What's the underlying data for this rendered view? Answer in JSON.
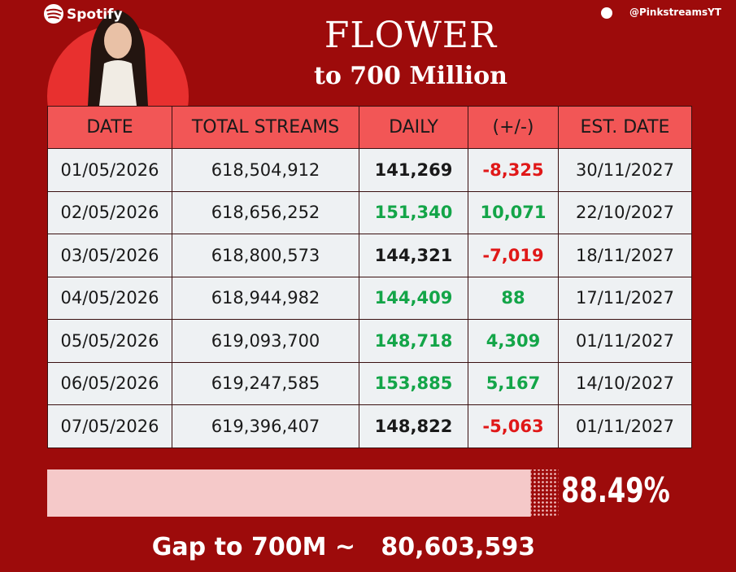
{
  "header": {
    "brand": "Spotify",
    "handle": "@PinkstreamsYT",
    "title": "FLOWER",
    "subtitle": "to 700 Million"
  },
  "table": {
    "columns": [
      "DATE",
      "TOTAL STREAMS",
      "DAILY",
      "(+/-)",
      "EST. DATE"
    ],
    "rows": [
      [
        "01/05/2026",
        "618,504,912",
        "141,269",
        "-8,325",
        "30/11/2027"
      ],
      [
        "02/05/2026",
        "618,656,252",
        "151,340",
        "10,071",
        "22/10/2027"
      ],
      [
        "03/05/2026",
        "618,800,573",
        "144,321",
        "-7,019",
        "18/11/2027"
      ],
      [
        "04/05/2026",
        "618,944,982",
        "144,409",
        "88",
        "17/11/2027"
      ],
      [
        "05/05/2026",
        "619,093,700",
        "148,718",
        "4,309",
        "01/11/2027"
      ],
      [
        "06/05/2026",
        "619,247,585",
        "153,885",
        "5,167",
        "14/10/2027"
      ],
      [
        "07/05/2026",
        "619,396,407",
        "148,822",
        "-5,063",
        "01/11/2027"
      ]
    ],
    "tones": [
      [
        "#1a1a1a",
        "#e01818"
      ],
      [
        "#13a548",
        "#13a548"
      ],
      [
        "#1a1a1a",
        "#e01818"
      ],
      [
        "#13a548",
        "#13a548"
      ],
      [
        "#13a548",
        "#13a548"
      ],
      [
        "#13a548",
        "#13a548"
      ],
      [
        "#1a1a1a",
        "#e01818"
      ]
    ]
  },
  "progress": {
    "value": 88.49,
    "label": "88.49%"
  },
  "gap": {
    "label": "Gap to 700M ~",
    "value": "80,603,593"
  }
}
